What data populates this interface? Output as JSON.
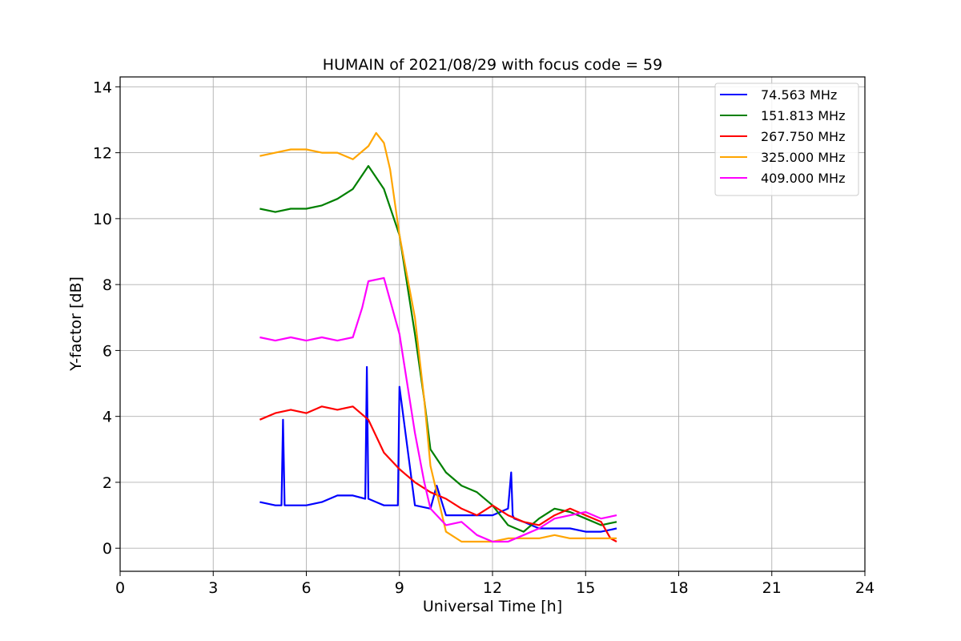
{
  "chart_data": {
    "type": "line",
    "title": "HUMAIN of 2021/08/29 with focus code = 59",
    "xlabel": "Universal Time [h]",
    "ylabel": "Y-factor [dB]",
    "xlim": [
      0,
      24
    ],
    "ylim": [
      -0.7,
      14.3
    ],
    "xticks": [
      0,
      3,
      6,
      9,
      12,
      15,
      18,
      21,
      24
    ],
    "yticks": [
      0,
      2,
      4,
      6,
      8,
      10,
      12,
      14
    ],
    "grid": true,
    "legend_position": "top-right",
    "series": [
      {
        "name": " 74.563 MHz",
        "color": "#0000ff",
        "x": [
          4.5,
          5.0,
          5.2,
          5.25,
          5.3,
          5.5,
          6.0,
          6.5,
          7.0,
          7.5,
          7.9,
          7.95,
          8.0,
          8.25,
          8.5,
          8.95,
          9.0,
          9.5,
          10.0,
          10.2,
          10.5,
          11.0,
          11.5,
          12.0,
          12.5,
          12.6,
          12.65,
          12.7,
          13.0,
          13.5,
          14.0,
          14.5,
          15.0,
          15.5,
          16.0
        ],
        "y": [
          1.4,
          1.3,
          1.3,
          3.9,
          1.3,
          1.3,
          1.3,
          1.4,
          1.6,
          1.6,
          1.5,
          5.5,
          1.5,
          1.4,
          1.3,
          1.3,
          4.9,
          1.3,
          1.2,
          1.9,
          1.0,
          1.0,
          1.0,
          1.0,
          1.2,
          2.3,
          1.0,
          0.9,
          0.8,
          0.6,
          0.6,
          0.6,
          0.5,
          0.5,
          0.6
        ]
      },
      {
        "name": "151.813 MHz",
        "color": "#008000",
        "x": [
          4.5,
          5.0,
          5.5,
          6.0,
          6.5,
          7.0,
          7.5,
          8.0,
          8.5,
          9.0,
          9.5,
          9.8,
          10.0,
          10.5,
          11.0,
          11.5,
          12.0,
          12.5,
          13.0,
          13.5,
          14.0,
          14.5,
          15.0,
          15.5,
          16.0
        ],
        "y": [
          10.3,
          10.2,
          10.3,
          10.3,
          10.4,
          10.6,
          10.9,
          11.6,
          10.9,
          9.5,
          6.5,
          4.5,
          3.0,
          2.3,
          1.9,
          1.7,
          1.3,
          0.7,
          0.5,
          0.9,
          1.2,
          1.1,
          0.9,
          0.7,
          0.8
        ]
      },
      {
        "name": "267.750 MHz",
        "color": "#ff0000",
        "x": [
          4.5,
          5.0,
          5.5,
          6.0,
          6.5,
          7.0,
          7.5,
          8.0,
          8.5,
          9.0,
          9.5,
          10.0,
          10.5,
          11.0,
          11.5,
          12.0,
          12.5,
          13.0,
          13.5,
          14.0,
          14.5,
          15.0,
          15.5,
          15.8,
          16.0
        ],
        "y": [
          3.9,
          4.1,
          4.2,
          4.1,
          4.3,
          4.2,
          4.3,
          3.9,
          2.9,
          2.4,
          2.0,
          1.7,
          1.5,
          1.2,
          1.0,
          1.3,
          1.0,
          0.8,
          0.7,
          1.0,
          1.2,
          1.0,
          0.8,
          0.3,
          0.2
        ]
      },
      {
        "name": "325.000 MHz",
        "color": "#ffa500",
        "x": [
          4.5,
          5.0,
          5.5,
          6.0,
          6.5,
          7.0,
          7.5,
          8.0,
          8.25,
          8.5,
          8.7,
          9.0,
          9.5,
          9.8,
          10.0,
          10.5,
          11.0,
          11.5,
          12.0,
          12.5,
          13.0,
          13.5,
          14.0,
          14.5,
          15.0,
          15.5,
          16.0
        ],
        "y": [
          11.9,
          12.0,
          12.1,
          12.1,
          12.0,
          12.0,
          11.8,
          12.2,
          12.6,
          12.3,
          11.5,
          9.5,
          7.0,
          4.5,
          2.5,
          0.5,
          0.2,
          0.2,
          0.2,
          0.3,
          0.3,
          0.3,
          0.4,
          0.3,
          0.3,
          0.3,
          0.3
        ]
      },
      {
        "name": "409.000 MHz",
        "color": "#ff00ff",
        "x": [
          4.5,
          5.0,
          5.5,
          6.0,
          6.5,
          7.0,
          7.5,
          7.8,
          8.0,
          8.5,
          9.0,
          9.5,
          9.8,
          10.0,
          10.5,
          11.0,
          11.5,
          12.0,
          12.5,
          13.0,
          13.5,
          14.0,
          14.5,
          15.0,
          15.5,
          16.0
        ],
        "y": [
          6.4,
          6.3,
          6.4,
          6.3,
          6.4,
          6.3,
          6.4,
          7.3,
          8.1,
          8.2,
          6.5,
          3.5,
          2.0,
          1.2,
          0.7,
          0.8,
          0.4,
          0.2,
          0.2,
          0.4,
          0.6,
          0.9,
          1.0,
          1.1,
          0.9,
          1.0
        ]
      }
    ]
  }
}
